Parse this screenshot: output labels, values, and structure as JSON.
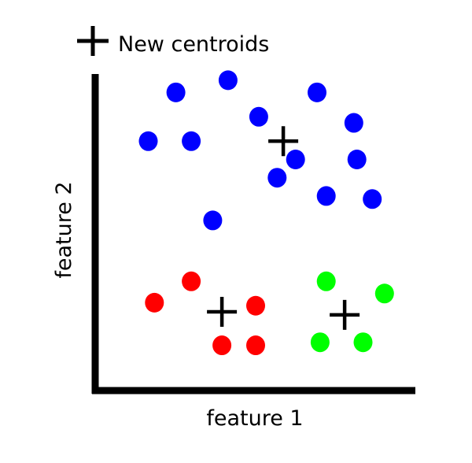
{
  "chart_data": {
    "type": "scatter",
    "title": "",
    "xlabel": "feature 1",
    "ylabel": "feature 2",
    "xlim": [
      0,
      10
    ],
    "ylim": [
      0,
      10
    ],
    "grid": false,
    "axis_ticks": false,
    "legend": {
      "placement": "top-left",
      "entries": [
        {
          "label": "New centroids",
          "marker": "plus",
          "color": "#000000"
        }
      ]
    },
    "series": [
      {
        "color": "#0000ff",
        "marker": "circle",
        "points": [
          [
            2.4,
            9.5
          ],
          [
            4.1,
            9.9
          ],
          [
            5.1,
            8.7
          ],
          [
            7.0,
            9.5
          ],
          [
            8.2,
            8.5
          ],
          [
            1.5,
            7.9
          ],
          [
            2.9,
            7.9
          ],
          [
            6.3,
            7.3
          ],
          [
            8.3,
            7.3
          ],
          [
            5.7,
            6.7
          ],
          [
            7.3,
            6.1
          ],
          [
            8.8,
            6.0
          ],
          [
            3.6,
            5.3
          ]
        ]
      },
      {
        "color": "#ff0000",
        "marker": "circle",
        "points": [
          [
            2.9,
            3.3
          ],
          [
            1.7,
            2.6
          ],
          [
            5.0,
            2.5
          ],
          [
            3.9,
            1.2
          ],
          [
            5.0,
            1.2
          ]
        ]
      },
      {
        "color": "#00ff00",
        "marker": "circle",
        "points": [
          [
            7.3,
            3.3
          ],
          [
            9.2,
            2.9
          ],
          [
            7.1,
            1.3
          ],
          [
            8.5,
            1.3
          ]
        ]
      }
    ],
    "centroids": {
      "label": "New centroids",
      "marker": "plus",
      "color": "#000000",
      "points": [
        [
          5.9,
          7.9
        ],
        [
          3.9,
          2.3
        ],
        [
          7.9,
          2.2
        ]
      ]
    }
  }
}
